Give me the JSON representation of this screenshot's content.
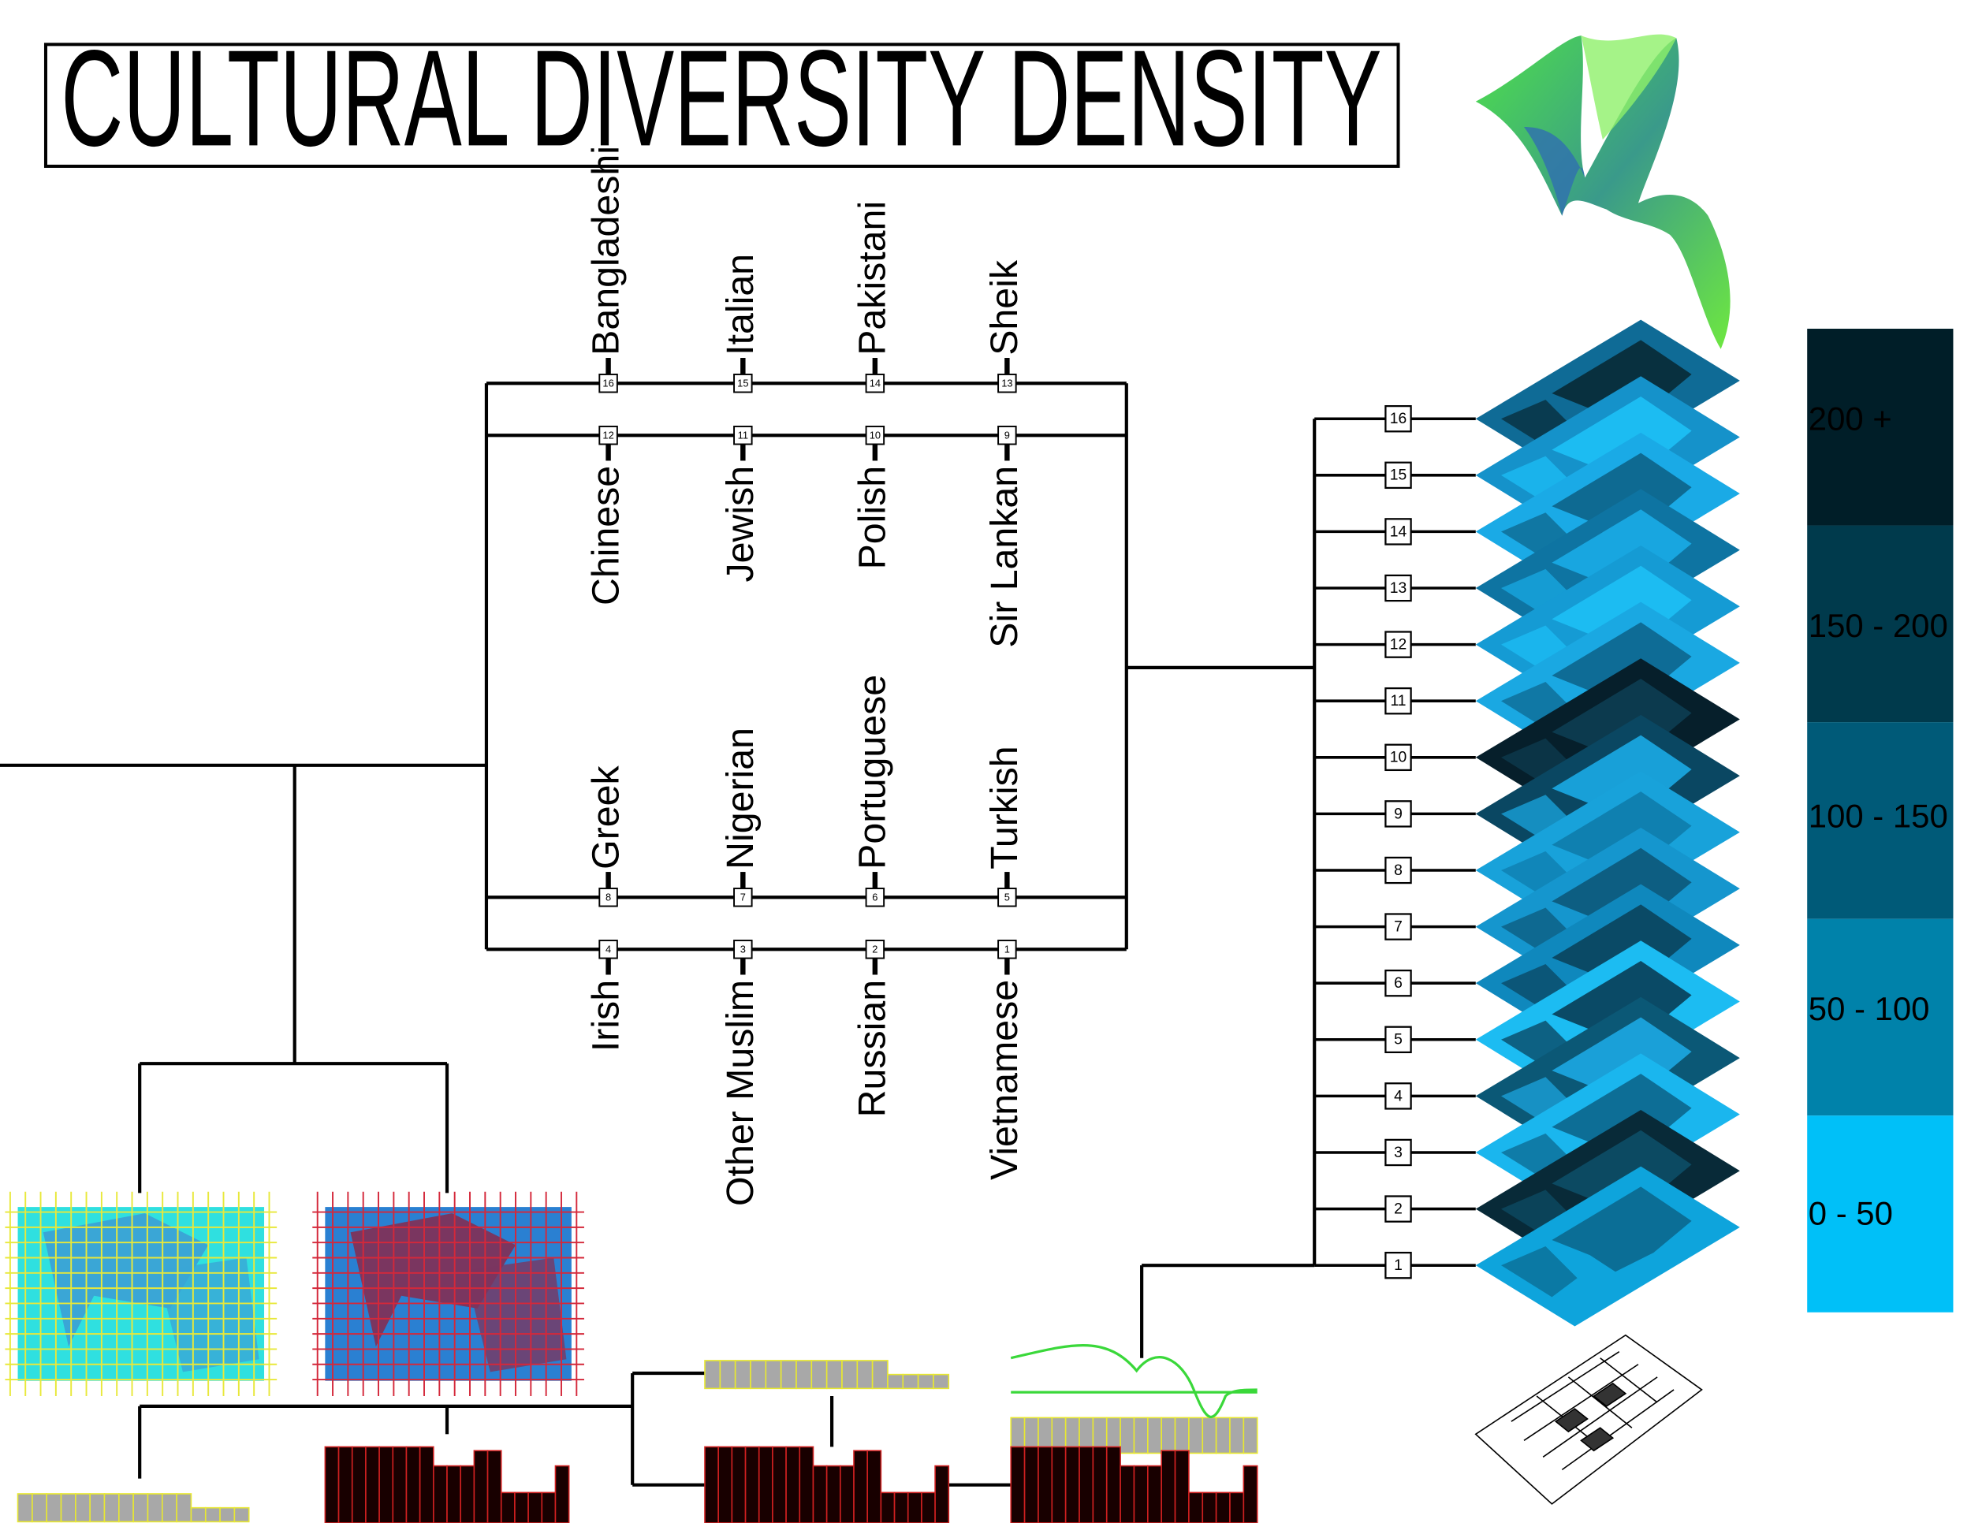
{
  "title": "CULTURAL DIVERSITY DENSITY",
  "rows": [
    [
      {
        "number": 16,
        "label": "Bangladeshi"
      },
      {
        "number": 15,
        "label": "Italian"
      },
      {
        "number": 14,
        "label": "Pakistani"
      },
      {
        "number": 13,
        "label": "Sheik"
      }
    ],
    [
      {
        "number": 12,
        "label": "Chinese"
      },
      {
        "number": 11,
        "label": "Jewish"
      },
      {
        "number": 10,
        "label": "Polish"
      },
      {
        "number": 9,
        "label": "Sir Lankan"
      }
    ],
    [
      {
        "number": 8,
        "label": "Greek"
      },
      {
        "number": 7,
        "label": "Nigerian"
      },
      {
        "number": 6,
        "label": "Portuguese"
      },
      {
        "number": 5,
        "label": "Turkish"
      }
    ],
    [
      {
        "number": 4,
        "label": "Irish"
      },
      {
        "number": 3,
        "label": "Other Muslim"
      },
      {
        "number": 2,
        "label": "Russian"
      },
      {
        "number": 1,
        "label": "Vietnamese"
      }
    ]
  ],
  "layers": [
    16,
    15,
    14,
    13,
    12,
    11,
    10,
    9,
    8,
    7,
    6,
    5,
    4,
    3,
    2,
    1
  ],
  "legend": [
    "200 +",
    "150 - 200",
    "100 - 150",
    "50 - 100",
    "0 - 50"
  ]
}
